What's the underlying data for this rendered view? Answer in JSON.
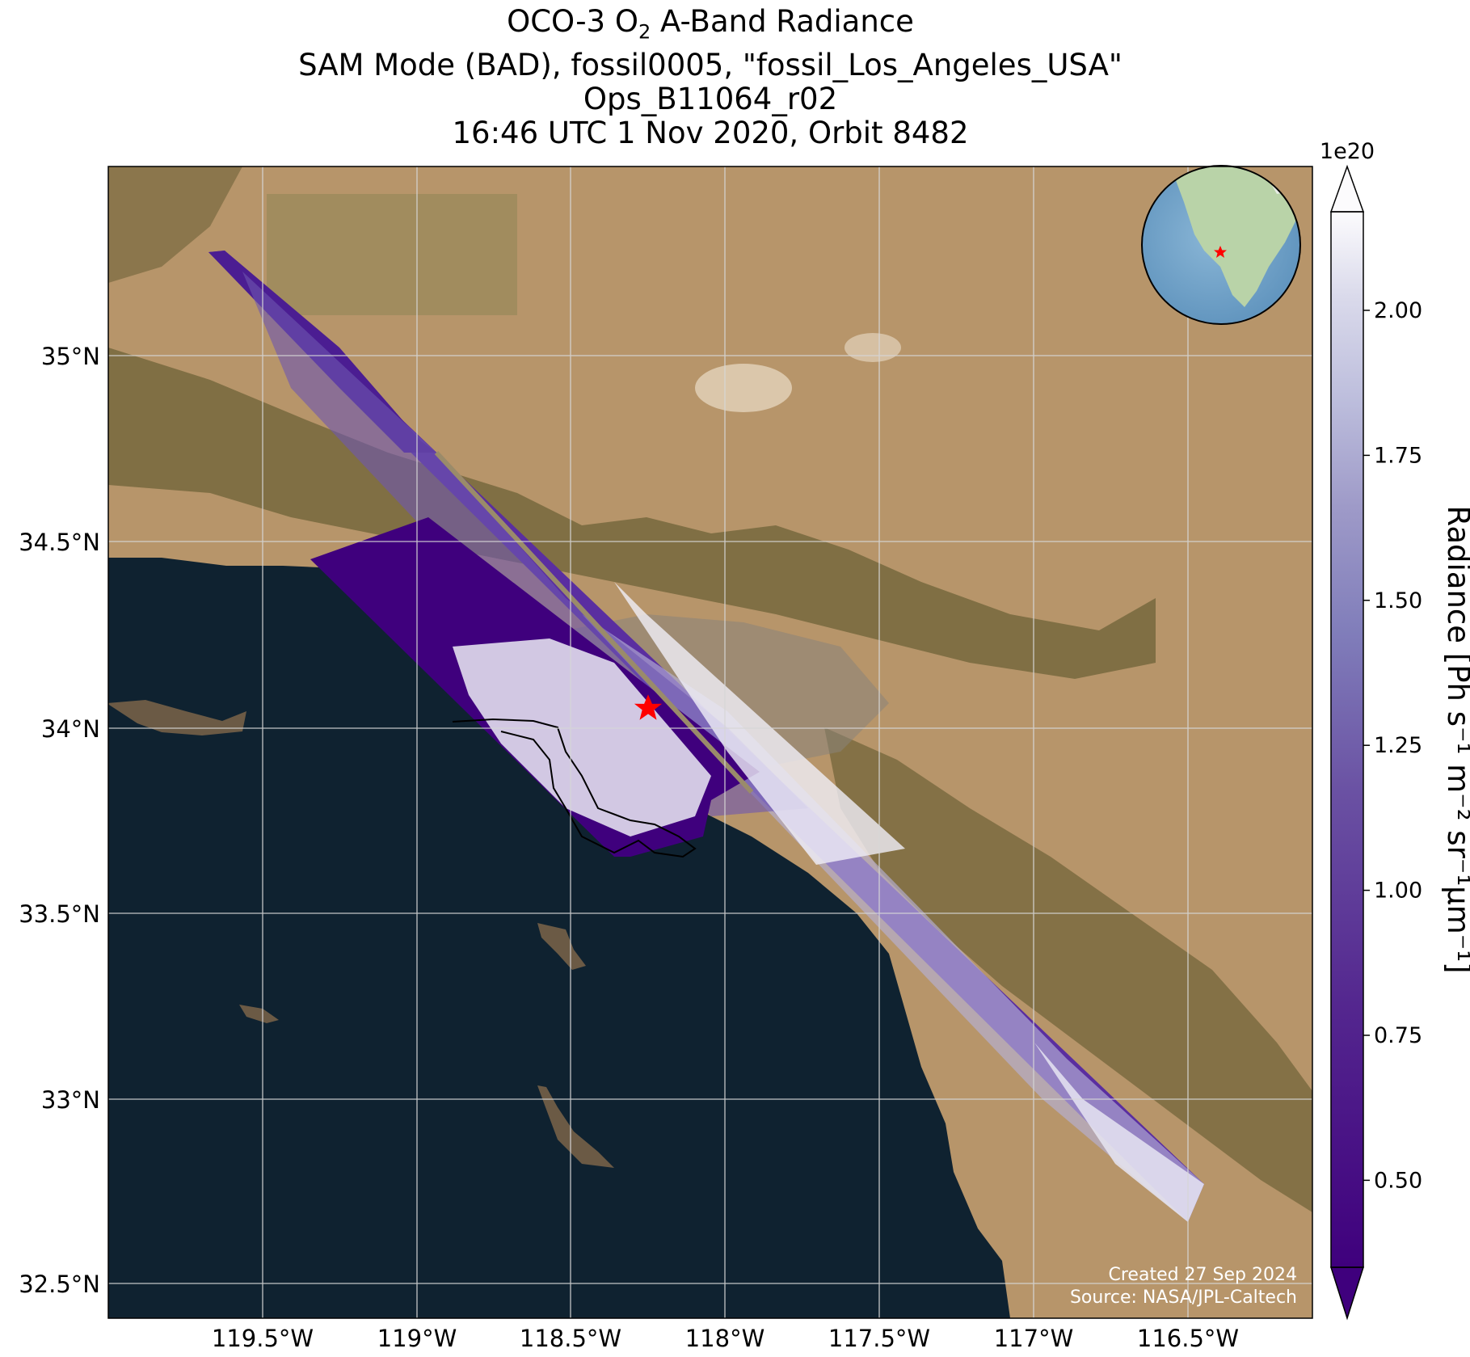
{
  "title": {
    "line1_pre": "OCO-3 O",
    "line1_sub": "2",
    "line1_post": " A-Band Radiance",
    "line2": "SAM Mode (BAD), fossil0005, \"fossil_Los_Angeles_USA\"",
    "line3": "Ops_B11064_r02",
    "line4": "16:46 UTC 1 Nov 2020, Orbit 8482"
  },
  "map": {
    "lat_ticks": [
      "35°N",
      "34.5°N",
      "34°N",
      "33.5°N",
      "33°N",
      "32.5°N"
    ],
    "lon_ticks": [
      "119.5°W",
      "119°W",
      "118.5°W",
      "118°W",
      "117.5°W",
      "117°W",
      "116.5°W"
    ],
    "lat_values": [
      35.0,
      34.5,
      34.0,
      33.5,
      33.0,
      32.5
    ],
    "lon_values": [
      -119.5,
      -119.0,
      -118.5,
      -118.0,
      -117.5,
      -117.0,
      -116.5
    ],
    "extent": {
      "lon_min": -120.0,
      "lon_max": -116.1,
      "lat_min": 32.4,
      "lat_max": 35.5
    },
    "target_marker": {
      "name": "fossil_Los_Angeles_USA",
      "lon": -118.25,
      "lat": 34.05,
      "color": "#ff0000"
    },
    "credit_line1": "Created 27 Sep 2024",
    "credit_line2": "Source: NASA/JPL-Caltech",
    "colors": {
      "ocean": "#0f2230",
      "land": "#b7956a",
      "mountain": "#6e6338"
    }
  },
  "colorbar": {
    "exponent_label": "1e20",
    "ticks": [
      "0.50",
      "0.75",
      "1.00",
      "1.25",
      "1.50",
      "1.75",
      "2.00"
    ],
    "tick_values": [
      0.5,
      0.75,
      1.0,
      1.25,
      1.5,
      1.75,
      2.0
    ],
    "range": [
      0.35,
      2.17
    ],
    "label": "Radiance [Ph s⁻¹ m⁻² sr⁻¹μm⁻¹]",
    "colormap": "Purples_r",
    "color_low": "#3f007d",
    "color_high": "#fcfbfd",
    "extend": "both"
  }
}
